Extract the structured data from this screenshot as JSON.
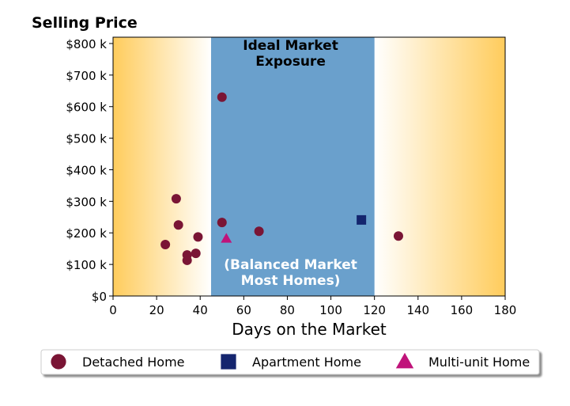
{
  "chart_data": {
    "type": "scatter",
    "title": "Selling Price",
    "xlabel": "Days on the Market",
    "ylabel": "",
    "xlim": [
      0,
      180
    ],
    "ylim": [
      0,
      820000
    ],
    "x_ticks": [
      0,
      20,
      40,
      60,
      80,
      100,
      120,
      140,
      160,
      180
    ],
    "x_tick_labels": [
      "0",
      "20",
      "40",
      "60",
      "80",
      "100",
      "120",
      "140",
      "160",
      "180"
    ],
    "y_ticks": [
      0,
      100000,
      200000,
      300000,
      400000,
      500000,
      600000,
      700000,
      800000
    ],
    "y_tick_labels": [
      "$0",
      "$100 k",
      "$200 k",
      "$300 k",
      "$400 k",
      "$500 k",
      "$600 k",
      "$700 k",
      "$800 k"
    ],
    "grid": false,
    "legend_position": "bottom",
    "ideal_region": {
      "x_start": 45,
      "x_end": 120,
      "color": "#6aa0cc"
    },
    "gradient_color": "#ffcc5c",
    "annotations": [
      {
        "text": "Ideal Market",
        "x": 81.5,
        "y": 795000,
        "color": "#000000"
      },
      {
        "text": "Exposure",
        "x": 81.5,
        "y": 745000,
        "color": "#000000"
      },
      {
        "text": "(Balanced Market",
        "x": 81.5,
        "y": 100000,
        "color": "#ffffff"
      },
      {
        "text": "Most Homes)",
        "x": 81.5,
        "y": 50000,
        "color": "#ffffff"
      }
    ],
    "series": [
      {
        "name": "Detached Home",
        "marker": "circle",
        "color": "#7a1535",
        "points": [
          {
            "x": 50,
            "y": 630000
          },
          {
            "x": 29,
            "y": 308000
          },
          {
            "x": 30,
            "y": 225000
          },
          {
            "x": 50,
            "y": 233000
          },
          {
            "x": 67,
            "y": 205000
          },
          {
            "x": 131,
            "y": 190000
          },
          {
            "x": 39,
            "y": 187000
          },
          {
            "x": 24,
            "y": 163000
          },
          {
            "x": 34,
            "y": 130000
          },
          {
            "x": 38,
            "y": 135000
          },
          {
            "x": 34,
            "y": 113000
          }
        ]
      },
      {
        "name": "Apartment Home",
        "marker": "square",
        "color": "#14256e",
        "points": [
          {
            "x": 114,
            "y": 241000
          }
        ]
      },
      {
        "name": "Multi-unit Home",
        "marker": "triangle",
        "color": "#c0137a",
        "points": [
          {
            "x": 52,
            "y": 182000
          }
        ]
      }
    ]
  }
}
